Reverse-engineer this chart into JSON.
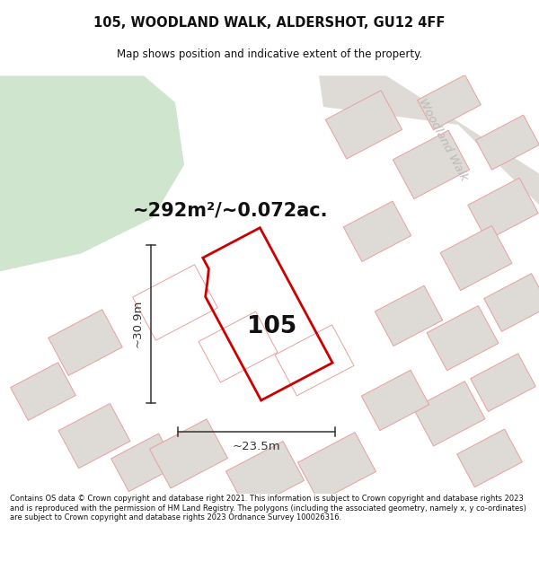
{
  "title": "105, WOODLAND WALK, ALDERSHOT, GU12 4FF",
  "subtitle": "Map shows position and indicative extent of the property.",
  "area_text": "~292m²/~0.072ac.",
  "label_105": "105",
  "dim_width": "~23.5m",
  "dim_height": "~30.9m",
  "road_label": "Woodland Walk",
  "footer": "Contains OS data © Crown copyright and database right 2021. This information is subject to Crown copyright and database rights 2023 and is reproduced with the permission of HM Land Registry. The polygons (including the associated geometry, namely x, y co-ordinates) are subject to Crown copyright and database rights 2023 Ordnance Survey 100026316.",
  "map_bg": "#eeebe6",
  "green_area_color": "#d0e5ce",
  "plot_outline_color": "#cc0000",
  "neighbor_outline_color": "#e8a0a0",
  "neighbor_fill_color": "#dedad5",
  "dim_line_color": "#333333",
  "title_color": "#111111",
  "footer_color": "#111111",
  "road_label_color": "#bbbbbb",
  "white": "#ffffff"
}
